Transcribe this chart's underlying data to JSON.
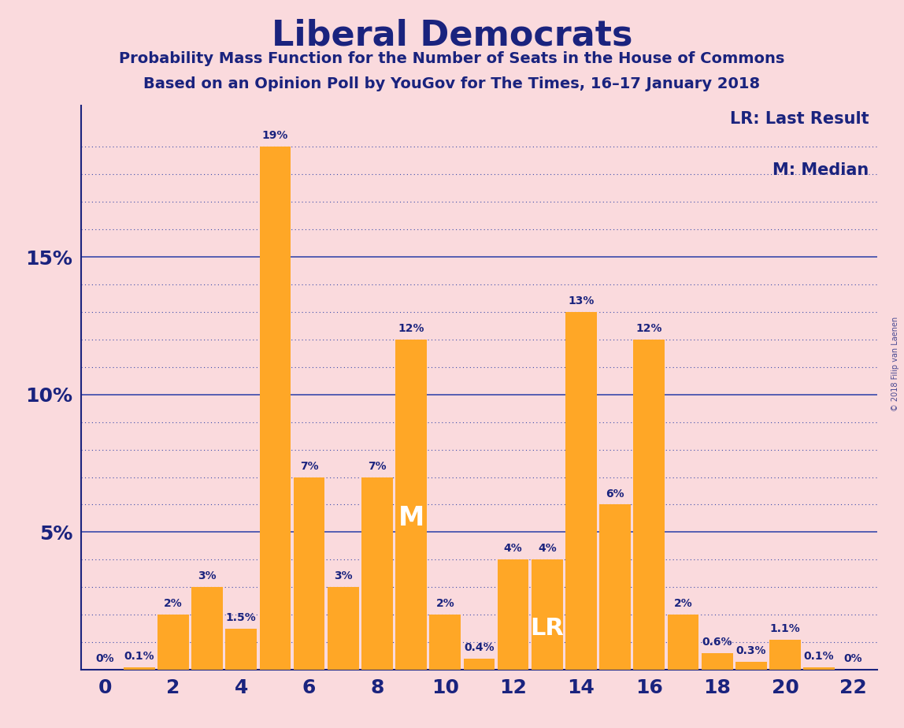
{
  "title": "Liberal Democrats",
  "subtitle1": "Probability Mass Function for the Number of Seats in the House of Commons",
  "subtitle2": "Based on an Opinion Poll by YouGov for The Times, 16–17 January 2018",
  "background_color": "#FADADD",
  "bar_color": "#FFA726",
  "text_color": "#1a237e",
  "categories": [
    0,
    1,
    2,
    3,
    4,
    5,
    6,
    7,
    8,
    9,
    10,
    11,
    12,
    13,
    14,
    15,
    16,
    17,
    18,
    19,
    20,
    21,
    22
  ],
  "values": [
    0.0,
    0.1,
    2.0,
    3.0,
    1.5,
    19.0,
    7.0,
    3.0,
    7.0,
    12.0,
    2.0,
    0.4,
    4.0,
    4.0,
    13.0,
    6.0,
    12.0,
    2.0,
    0.6,
    0.3,
    1.1,
    0.1,
    0.0
  ],
  "label_values": [
    "0%",
    "0.1%",
    "2%",
    "3%",
    "1.5%",
    "19%",
    "7%",
    "3%",
    "7%",
    "12%",
    "2%",
    "0.4%",
    "4%",
    "4%",
    "13%",
    "6%",
    "12%",
    "2%",
    "0.6%",
    "0.3%",
    "1.1%",
    "0.1%",
    "0%"
  ],
  "ytick_labels": [
    "5%",
    "10%",
    "15%"
  ],
  "ytick_values": [
    5,
    10,
    15
  ],
  "solid_hlines": [
    5,
    10,
    15
  ],
  "dotted_hlines": [
    1,
    2,
    3,
    4,
    6,
    7,
    8,
    9,
    11,
    12,
    13,
    14,
    16,
    17,
    18,
    19
  ],
  "ylim": [
    0,
    20.5
  ],
  "median_bar_idx": 9,
  "lr_bar_idx": 13,
  "legend_lr": "LR: Last Result",
  "legend_m": "M: Median",
  "watermark": "© 2018 Filip van Laenen",
  "grid_color": "#3949ab",
  "median_label_color": "#ffffff",
  "lr_label_color": "#ffffff",
  "bar_label_fontsize": 10,
  "tick_fontsize": 18
}
